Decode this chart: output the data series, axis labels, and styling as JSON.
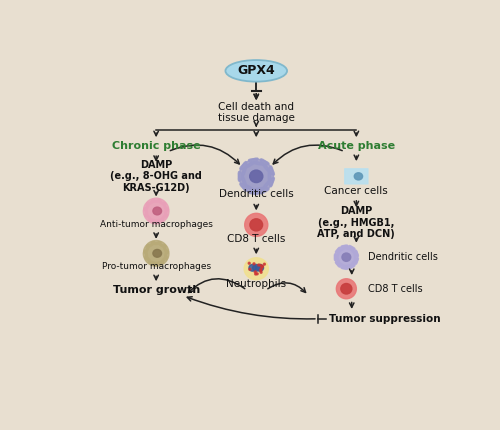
{
  "bg_color": "#e8dfd0",
  "gpx4_text": "GPX4",
  "gpx4_ellipse_color": "#a8d8ea",
  "gpx4_ellipse_ec": "#80b8cc",
  "cell_death_text": "Cell death and\ntissue damage",
  "chronic_text": "Chronic phase",
  "chronic_color": "#2e7d32",
  "acute_text": "Acute phase",
  "acute_color": "#2e7d32",
  "damp_left_text": "DAMP\n(e.g., 8-OHG and\nKRAS-G12D)",
  "anti_tumor_text": "Anti-tumor macrophages",
  "pro_tumor_text": "Pro-tumor macrophages",
  "tumor_growth_text": "Tumor growth",
  "dc_center_text": "Dendritic cells",
  "cd8_center_text": "CD8 T cells",
  "neutrophil_text": "Neutrophils",
  "cancer_cells_text": "Cancer cells",
  "damp_right_text": "DAMP\n(e.g., HMGB1,\nATP, and DCN)",
  "dc_right_text": "Dendritic cells",
  "cd8_right_text": "CD8 T cells",
  "tumor_suppress_text": "Tumor suppression",
  "arrow_color": "#222222",
  "text_color": "#111111"
}
